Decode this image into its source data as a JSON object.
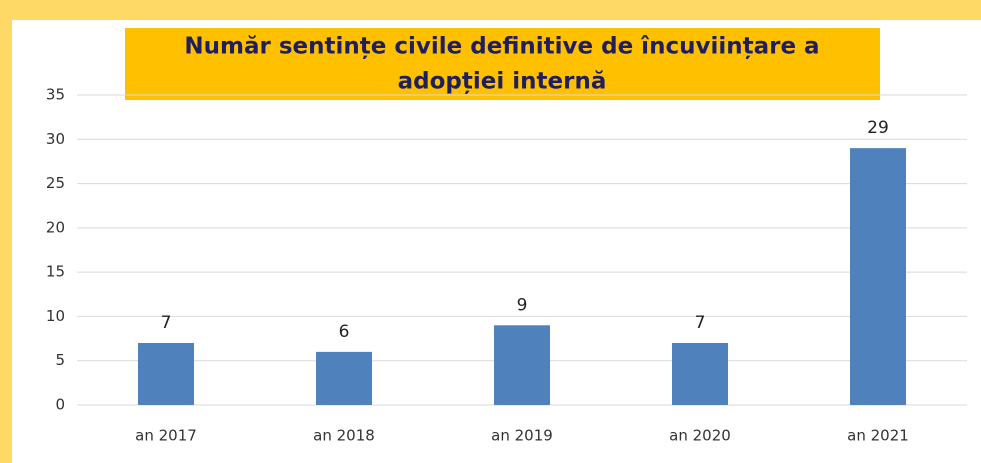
{
  "chart_data": {
    "type": "bar",
    "title": [
      "Număr sentințe civile definitive de încuviințare a",
      "adopției internă"
    ],
    "categories": [
      "an 2017",
      "an 2018",
      "an 2019",
      "an 2020",
      "an 2021"
    ],
    "values": [
      7,
      6,
      9,
      7,
      29
    ],
    "color": "#4f81bd",
    "ylim": [
      0,
      35
    ],
    "yticks": [
      0,
      5,
      10,
      15,
      20,
      25,
      30,
      35
    ],
    "grid": true
  }
}
